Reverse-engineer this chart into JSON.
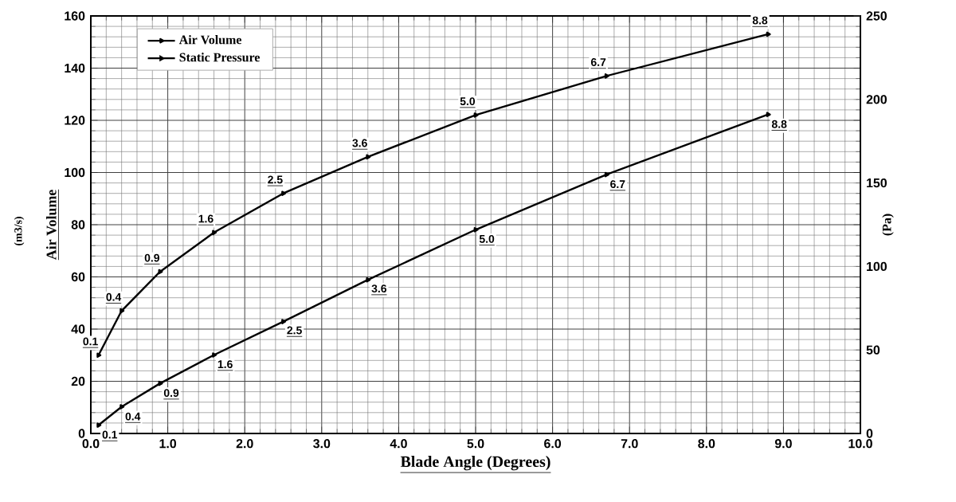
{
  "chart_data": {
    "type": "line",
    "xlabel": "Blade Angle (Degrees)",
    "ylabel": "Air Volume",
    "y2label": "(Pa)",
    "x": [
      0.1,
      0.4,
      0.9,
      1.6,
      2.5,
      3.6,
      5.0,
      6.7,
      8.8
    ],
    "series": [
      {
        "name": "Air Volume",
        "color": "#000000",
        "values": [
          30,
          47,
          62,
          77,
          92,
          106,
          122,
          137,
          153
        ]
      },
      {
        "name": "Static Pressure",
        "color": "#000000",
        "axis": "y2",
        "values": [
          5,
          16,
          30,
          47,
          67,
          92,
          122,
          155,
          191
        ]
      }
    ],
    "xlim": [
      0,
      10
    ],
    "ylim": [
      0,
      160
    ],
    "y2lim": [
      0,
      250
    ],
    "xticks": [
      {
        "value": 0,
        "label": "0.0"
      },
      {
        "value": 1,
        "label": "1.0"
      },
      {
        "value": 2,
        "label": "2.0"
      },
      {
        "value": 3,
        "label": "3.0"
      },
      {
        "value": 4,
        "label": "4.0"
      },
      {
        "value": 5,
        "label": "5.0"
      },
      {
        "value": 6,
        "label": "6.0"
      },
      {
        "value": 7,
        "label": "7.0"
      },
      {
        "value": 8,
        "label": "8.0"
      },
      {
        "value": 9,
        "label": "9.0"
      },
      {
        "value": 10,
        "label": "10.0"
      }
    ],
    "yticks": [
      0,
      20,
      40,
      60,
      80,
      100,
      120,
      140,
      160
    ],
    "y2ticks": [
      0,
      50,
      100,
      150,
      200,
      250
    ],
    "grid": true,
    "legend": "top left",
    "marker": "triangle",
    "line_style": "solid",
    "annotations": [
      "(m3/s)",
      {
        "text": "0.1",
        "x": 0.1,
        "y": 30
      },
      {
        "text": "0.4",
        "x": 0.4,
        "y": 47
      },
      {
        "text": "0.9",
        "x": 0.9,
        "y": 62
      },
      {
        "text": "1.6",
        "x": 1.6,
        "y": 77
      },
      {
        "text": "2.5",
        "x": 2.5,
        "y": 92
      },
      {
        "text": "3.6",
        "x": 3.6,
        "y": 106
      },
      {
        "text": "5.0",
        "x": 5.0,
        "y": 122
      },
      {
        "text": "6.7",
        "x": 6.7,
        "y": 137
      },
      {
        "text": "8.8",
        "x": 8.8,
        "y": 153
      },
      {
        "text": "0.1",
        "x": 0.1,
        "y": 3
      },
      {
        "text": "0.4",
        "x": 0.4,
        "y": 10
      },
      {
        "text": "0.9",
        "x": 0.9,
        "y": 19
      },
      {
        "text": "1.6",
        "x": 1.6,
        "y": 30
      },
      {
        "text": "2.5",
        "x": 2.5,
        "y": 43
      },
      {
        "text": "3.6",
        "x": 3.6,
        "y": 59
      },
      {
        "text": "5.0",
        "x": 5.0,
        "y": 78
      },
      {
        "text": "6.7",
        "x": 6.7,
        "y": 99
      },
      {
        "text": "8.8",
        "x": 8.8,
        "y": 122
      }
    ]
  }
}
